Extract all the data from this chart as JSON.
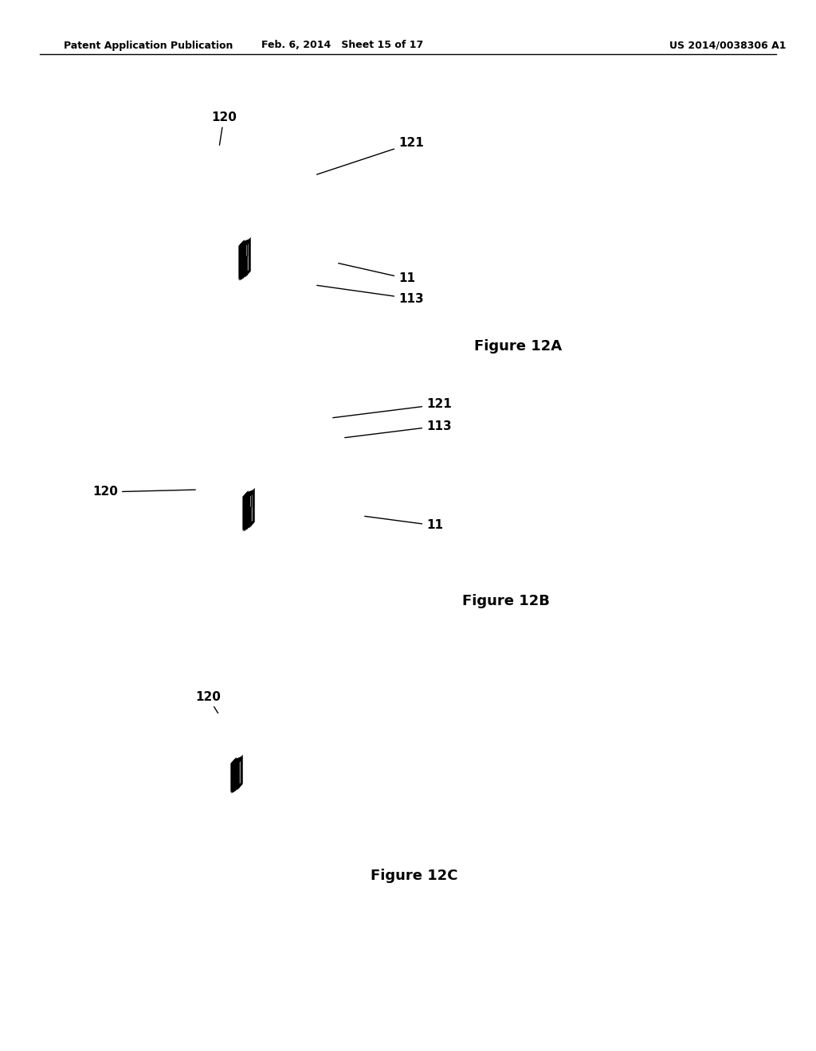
{
  "background_color": "#ffffff",
  "header_left": "Patent Application Publication",
  "header_mid": "Feb. 6, 2014   Sheet 15 of 17",
  "header_right": "US 2014/0038306 A1",
  "line_color": "#000000",
  "text_color": "#000000",
  "font_size_header": 9,
  "font_size_label": 13,
  "font_size_annot": 11
}
